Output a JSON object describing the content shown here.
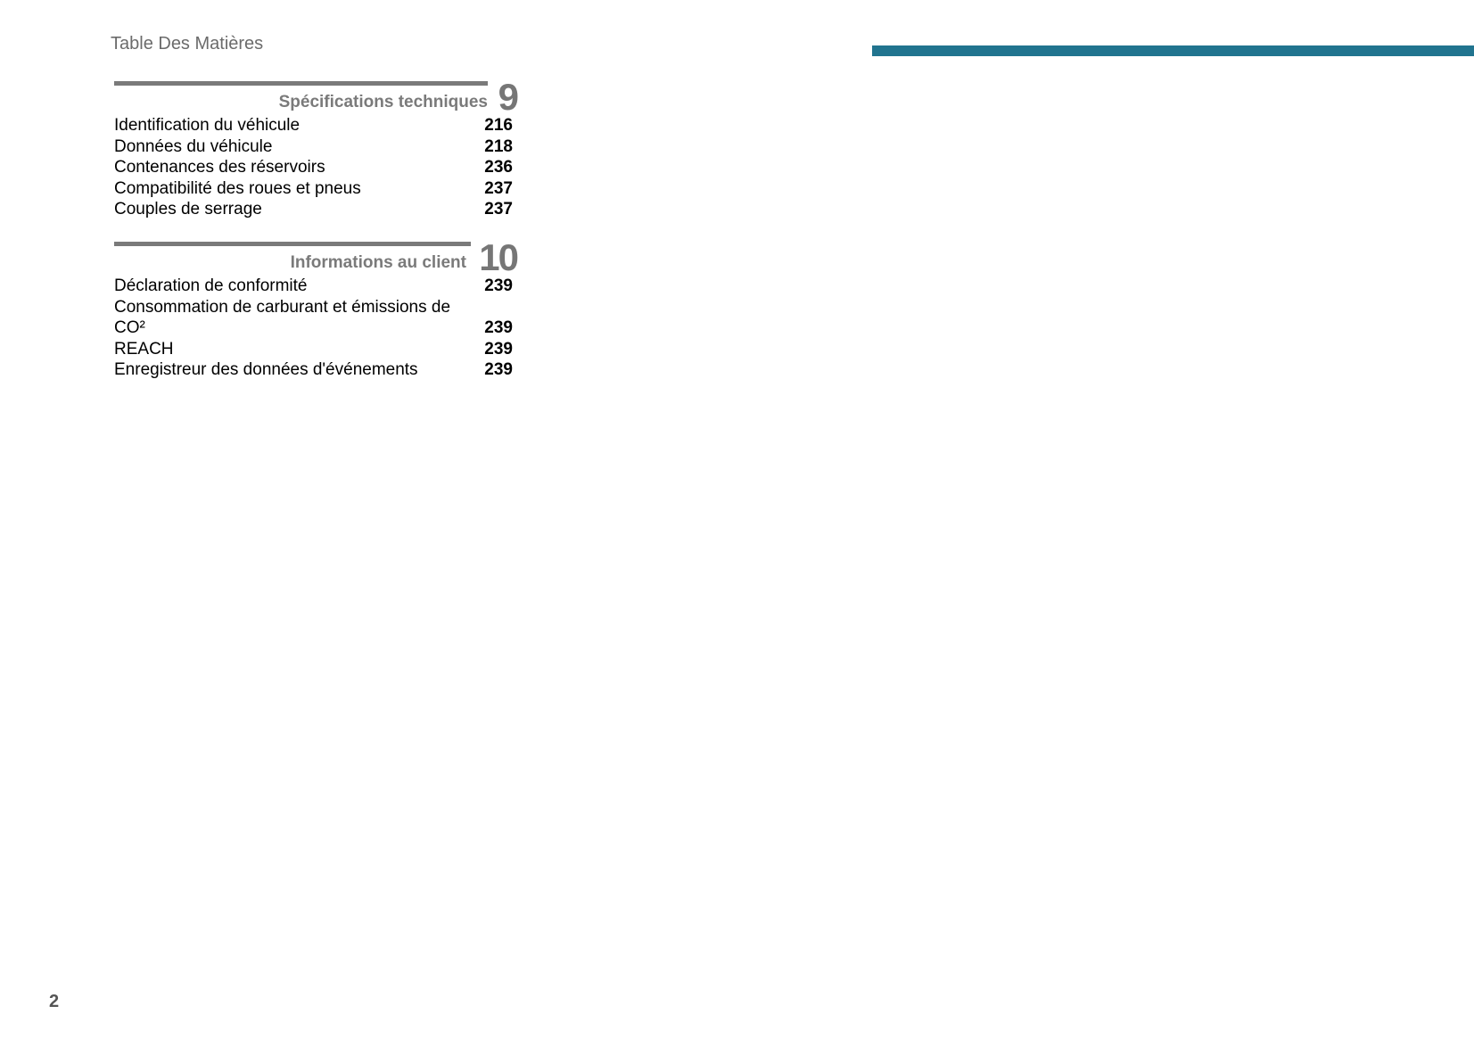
{
  "header": {
    "title": "Table Des Matières",
    "accent_color": "#21748f"
  },
  "sections": [
    {
      "number": "9",
      "heading": "Spécifications techniques",
      "entries": [
        {
          "label": "Identification du véhicule",
          "page": "216"
        },
        {
          "label": "Données du véhicule",
          "page": "218"
        },
        {
          "label": "Contenances des réservoirs",
          "page": "236"
        },
        {
          "label": "Compatibilité des roues et pneus",
          "page": "237"
        },
        {
          "label": "Couples de serrage",
          "page": "237"
        }
      ]
    },
    {
      "number": "10",
      "heading": "Informations au client",
      "entries": [
        {
          "label": "Déclaration de conformité",
          "page": "239"
        },
        {
          "label": "Consommation de carburant et émissions de CO²",
          "page": "239"
        },
        {
          "label": "REACH",
          "page": "239"
        },
        {
          "label": "Enregistreur des données d'événements",
          "page": "239"
        }
      ]
    }
  ],
  "footer": {
    "page_number": "2"
  }
}
